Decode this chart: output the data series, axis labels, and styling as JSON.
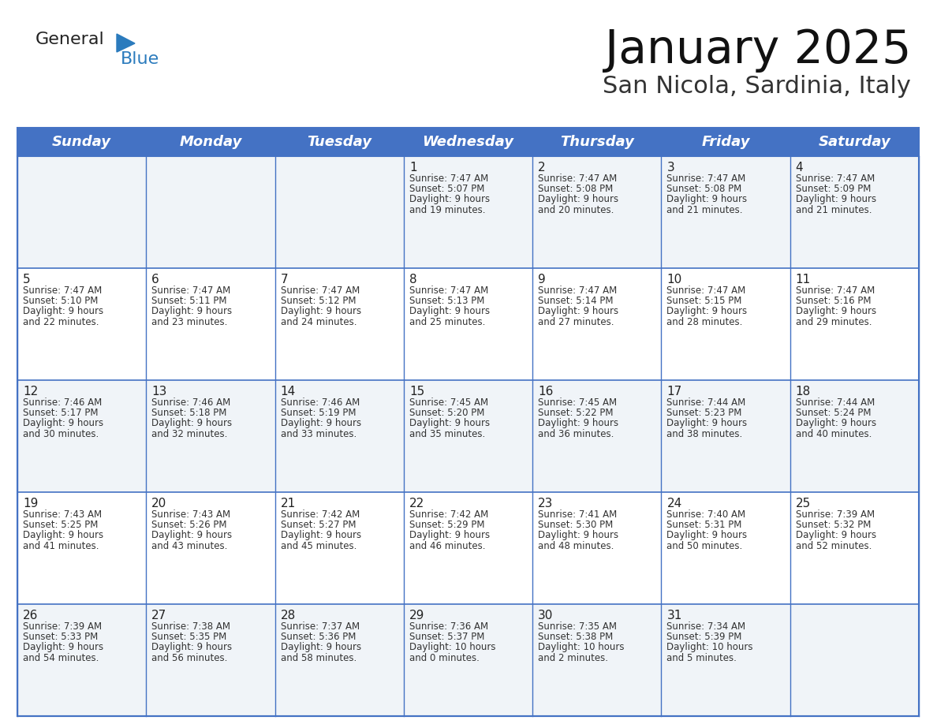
{
  "title": "January 2025",
  "subtitle": "San Nicola, Sardinia, Italy",
  "header_bg": "#4472C4",
  "header_text_color": "#FFFFFF",
  "weekdays": [
    "Sunday",
    "Monday",
    "Tuesday",
    "Wednesday",
    "Thursday",
    "Friday",
    "Saturday"
  ],
  "row_bg_even": "#FFFFFF",
  "row_bg_odd": "#F0F4F8",
  "cell_border_color": "#4472C4",
  "day_number_color": "#222222",
  "day_info_color": "#333333",
  "logo_general_color": "#222222",
  "logo_blue_color": "#2B7BBD",
  "title_fontsize": 42,
  "subtitle_fontsize": 22,
  "header_fontsize": 13,
  "day_num_fontsize": 11,
  "info_fontsize": 8.5,
  "days": [
    {
      "day": 1,
      "col": 3,
      "row": 0,
      "sunrise": "7:47 AM",
      "sunset": "5:07 PM",
      "daylight": "9 hours",
      "daylight2": "and 19 minutes."
    },
    {
      "day": 2,
      "col": 4,
      "row": 0,
      "sunrise": "7:47 AM",
      "sunset": "5:08 PM",
      "daylight": "9 hours",
      "daylight2": "and 20 minutes."
    },
    {
      "day": 3,
      "col": 5,
      "row": 0,
      "sunrise": "7:47 AM",
      "sunset": "5:08 PM",
      "daylight": "9 hours",
      "daylight2": "and 21 minutes."
    },
    {
      "day": 4,
      "col": 6,
      "row": 0,
      "sunrise": "7:47 AM",
      "sunset": "5:09 PM",
      "daylight": "9 hours",
      "daylight2": "and 21 minutes."
    },
    {
      "day": 5,
      "col": 0,
      "row": 1,
      "sunrise": "7:47 AM",
      "sunset": "5:10 PM",
      "daylight": "9 hours",
      "daylight2": "and 22 minutes."
    },
    {
      "day": 6,
      "col": 1,
      "row": 1,
      "sunrise": "7:47 AM",
      "sunset": "5:11 PM",
      "daylight": "9 hours",
      "daylight2": "and 23 minutes."
    },
    {
      "day": 7,
      "col": 2,
      "row": 1,
      "sunrise": "7:47 AM",
      "sunset": "5:12 PM",
      "daylight": "9 hours",
      "daylight2": "and 24 minutes."
    },
    {
      "day": 8,
      "col": 3,
      "row": 1,
      "sunrise": "7:47 AM",
      "sunset": "5:13 PM",
      "daylight": "9 hours",
      "daylight2": "and 25 minutes."
    },
    {
      "day": 9,
      "col": 4,
      "row": 1,
      "sunrise": "7:47 AM",
      "sunset": "5:14 PM",
      "daylight": "9 hours",
      "daylight2": "and 27 minutes."
    },
    {
      "day": 10,
      "col": 5,
      "row": 1,
      "sunrise": "7:47 AM",
      "sunset": "5:15 PM",
      "daylight": "9 hours",
      "daylight2": "and 28 minutes."
    },
    {
      "day": 11,
      "col": 6,
      "row": 1,
      "sunrise": "7:47 AM",
      "sunset": "5:16 PM",
      "daylight": "9 hours",
      "daylight2": "and 29 minutes."
    },
    {
      "day": 12,
      "col": 0,
      "row": 2,
      "sunrise": "7:46 AM",
      "sunset": "5:17 PM",
      "daylight": "9 hours",
      "daylight2": "and 30 minutes."
    },
    {
      "day": 13,
      "col": 1,
      "row": 2,
      "sunrise": "7:46 AM",
      "sunset": "5:18 PM",
      "daylight": "9 hours",
      "daylight2": "and 32 minutes."
    },
    {
      "day": 14,
      "col": 2,
      "row": 2,
      "sunrise": "7:46 AM",
      "sunset": "5:19 PM",
      "daylight": "9 hours",
      "daylight2": "and 33 minutes."
    },
    {
      "day": 15,
      "col": 3,
      "row": 2,
      "sunrise": "7:45 AM",
      "sunset": "5:20 PM",
      "daylight": "9 hours",
      "daylight2": "and 35 minutes."
    },
    {
      "day": 16,
      "col": 4,
      "row": 2,
      "sunrise": "7:45 AM",
      "sunset": "5:22 PM",
      "daylight": "9 hours",
      "daylight2": "and 36 minutes."
    },
    {
      "day": 17,
      "col": 5,
      "row": 2,
      "sunrise": "7:44 AM",
      "sunset": "5:23 PM",
      "daylight": "9 hours",
      "daylight2": "and 38 minutes."
    },
    {
      "day": 18,
      "col": 6,
      "row": 2,
      "sunrise": "7:44 AM",
      "sunset": "5:24 PM",
      "daylight": "9 hours",
      "daylight2": "and 40 minutes."
    },
    {
      "day": 19,
      "col": 0,
      "row": 3,
      "sunrise": "7:43 AM",
      "sunset": "5:25 PM",
      "daylight": "9 hours",
      "daylight2": "and 41 minutes."
    },
    {
      "day": 20,
      "col": 1,
      "row": 3,
      "sunrise": "7:43 AM",
      "sunset": "5:26 PM",
      "daylight": "9 hours",
      "daylight2": "and 43 minutes."
    },
    {
      "day": 21,
      "col": 2,
      "row": 3,
      "sunrise": "7:42 AM",
      "sunset": "5:27 PM",
      "daylight": "9 hours",
      "daylight2": "and 45 minutes."
    },
    {
      "day": 22,
      "col": 3,
      "row": 3,
      "sunrise": "7:42 AM",
      "sunset": "5:29 PM",
      "daylight": "9 hours",
      "daylight2": "and 46 minutes."
    },
    {
      "day": 23,
      "col": 4,
      "row": 3,
      "sunrise": "7:41 AM",
      "sunset": "5:30 PM",
      "daylight": "9 hours",
      "daylight2": "and 48 minutes."
    },
    {
      "day": 24,
      "col": 5,
      "row": 3,
      "sunrise": "7:40 AM",
      "sunset": "5:31 PM",
      "daylight": "9 hours",
      "daylight2": "and 50 minutes."
    },
    {
      "day": 25,
      "col": 6,
      "row": 3,
      "sunrise": "7:39 AM",
      "sunset": "5:32 PM",
      "daylight": "9 hours",
      "daylight2": "and 52 minutes."
    },
    {
      "day": 26,
      "col": 0,
      "row": 4,
      "sunrise": "7:39 AM",
      "sunset": "5:33 PM",
      "daylight": "9 hours",
      "daylight2": "and 54 minutes."
    },
    {
      "day": 27,
      "col": 1,
      "row": 4,
      "sunrise": "7:38 AM",
      "sunset": "5:35 PM",
      "daylight": "9 hours",
      "daylight2": "and 56 minutes."
    },
    {
      "day": 28,
      "col": 2,
      "row": 4,
      "sunrise": "7:37 AM",
      "sunset": "5:36 PM",
      "daylight": "9 hours",
      "daylight2": "and 58 minutes."
    },
    {
      "day": 29,
      "col": 3,
      "row": 4,
      "sunrise": "7:36 AM",
      "sunset": "5:37 PM",
      "daylight": "10 hours",
      "daylight2": "and 0 minutes."
    },
    {
      "day": 30,
      "col": 4,
      "row": 4,
      "sunrise": "7:35 AM",
      "sunset": "5:38 PM",
      "daylight": "10 hours",
      "daylight2": "and 2 minutes."
    },
    {
      "day": 31,
      "col": 5,
      "row": 4,
      "sunrise": "7:34 AM",
      "sunset": "5:39 PM",
      "daylight": "10 hours",
      "daylight2": "and 5 minutes."
    }
  ]
}
